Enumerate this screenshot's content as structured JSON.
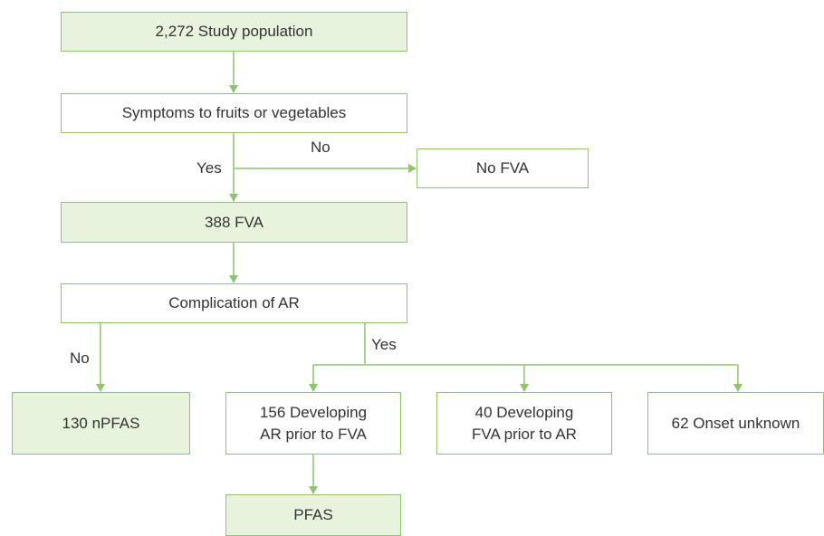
{
  "nodes": [
    {
      "label": [
        "2,272 Study population"
      ]
    },
    {
      "label": [
        "Symptoms to fruits or vegetables"
      ]
    },
    {
      "label": [
        "No FVA"
      ]
    },
    {
      "label": [
        "388 FVA"
      ]
    },
    {
      "label": [
        "Complication of AR"
      ]
    },
    {
      "label": [
        "130 nPFAS"
      ]
    },
    {
      "label": [
        "156 Developing",
        "AR prior to FVA"
      ]
    },
    {
      "label": [
        "40 Developing",
        "FVA prior to AR"
      ]
    },
    {
      "label": [
        "62 Onset unknown"
      ]
    },
    {
      "label": [
        "PFAS"
      ]
    }
  ],
  "edges": [
    {
      "label": "No"
    },
    {
      "label": "Yes"
    },
    {
      "label": "No"
    },
    {
      "label": "Yes"
    }
  ]
}
